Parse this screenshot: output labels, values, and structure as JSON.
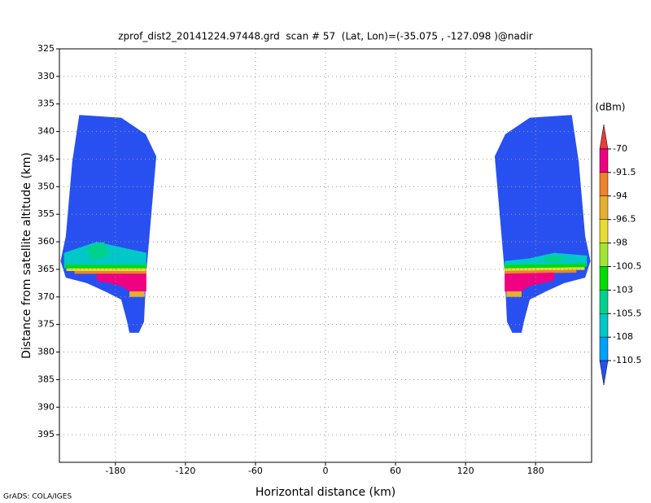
{
  "chart_data": {
    "type": "field",
    "title": "zprof_dist2_20141224.97448.grd  scan # 57  (Lat, Lon)=(-35.075 , -127.098 )@nadir",
    "x_label": "Horizontal distance (km)",
    "y_label": "Distance from satellite altitude (km)",
    "credit": "GrADS: COLA/IGES",
    "xlim": [
      -228,
      228
    ],
    "ylim": [
      325,
      400
    ],
    "y_inverted": true,
    "xticks": [
      -180,
      -120,
      -60,
      0,
      60,
      120,
      180
    ],
    "yticks": [
      325,
      330,
      335,
      340,
      345,
      350,
      355,
      360,
      365,
      370,
      375,
      380,
      385,
      390,
      395
    ],
    "grid": true,
    "colorbar": {
      "unit": "(dBm)",
      "levels": [
        -70,
        -91.5,
        -94,
        -96.5,
        -98,
        -100.5,
        -103,
        -105.5,
        -108,
        -110.5
      ],
      "colors": [
        "#e63c3c",
        "#f00082",
        "#f08228",
        "#e6af2d",
        "#e6dc32",
        "#a0e632",
        "#00dc00",
        "#00d28c",
        "#00c8c8",
        "#00a0ff",
        "#2850f0"
      ]
    },
    "regions": [
      {
        "value": -112,
        "points": [
          [
            -211,
            337
          ],
          [
            -175,
            337.5
          ],
          [
            -154,
            340.5
          ],
          [
            -145,
            344.5
          ],
          [
            -153.5,
            365.5
          ],
          [
            -155.5,
            374.5
          ],
          [
            -160,
            376.5
          ],
          [
            -168,
            376.5
          ],
          [
            -170,
            374.5
          ],
          [
            -175,
            370.5
          ],
          [
            -189,
            369
          ],
          [
            -204.5,
            367.5
          ],
          [
            -222.5,
            366.5
          ],
          [
            -224,
            365.5
          ],
          [
            -227,
            363.5
          ],
          [
            -222.5,
            359
          ],
          [
            -217,
            345.5
          ]
        ]
      },
      {
        "value": -107,
        "points": [
          [
            -224,
            362
          ],
          [
            -196,
            360
          ],
          [
            -175,
            361
          ],
          [
            -153.5,
            362
          ],
          [
            -153.5,
            364.5
          ],
          [
            -224,
            364.8
          ]
        ]
      },
      {
        "value": -104,
        "points": [
          [
            -205,
            361
          ],
          [
            -190,
            360
          ],
          [
            -185,
            362.5
          ],
          [
            -200,
            363.5
          ]
        ]
      },
      {
        "value": -102,
        "points": [
          [
            -223,
            364.2
          ],
          [
            -153.5,
            364.2
          ],
          [
            -153.5,
            364.8
          ],
          [
            -223,
            364.8
          ]
        ]
      },
      {
        "value": -97,
        "points": [
          [
            -222,
            364.8
          ],
          [
            -153.5,
            364.8
          ],
          [
            -153.5,
            365.3
          ],
          [
            -222,
            365.3
          ]
        ]
      },
      {
        "value": -93,
        "points": [
          [
            -215,
            365.3
          ],
          [
            -153.5,
            365.3
          ],
          [
            -153.5,
            365.8
          ],
          [
            -215,
            365.8
          ]
        ]
      },
      {
        "value": -85,
        "points": [
          [
            -196,
            365.8
          ],
          [
            -153.5,
            365.8
          ],
          [
            -153.5,
            369
          ],
          [
            -168,
            369
          ],
          [
            -175,
            368
          ],
          [
            -196,
            367
          ]
        ]
      },
      {
        "value": -95.5,
        "points": [
          [
            -168,
            369
          ],
          [
            -155,
            369
          ],
          [
            -155,
            370
          ],
          [
            -168,
            370
          ]
        ]
      },
      {
        "value": -112,
        "points": [
          [
            211,
            337
          ],
          [
            175,
            337.5
          ],
          [
            154,
            340.5
          ],
          [
            145,
            344.5
          ],
          [
            153.5,
            365.5
          ],
          [
            155.5,
            374.5
          ],
          [
            160,
            376.5
          ],
          [
            168,
            376.5
          ],
          [
            170,
            374.5
          ],
          [
            175,
            370.5
          ],
          [
            189,
            369
          ],
          [
            204.5,
            367.5
          ],
          [
            222.5,
            366.5
          ],
          [
            224,
            365.5
          ],
          [
            227,
            363.5
          ],
          [
            222.5,
            359
          ],
          [
            217,
            345.5
          ]
        ]
      },
      {
        "value": -107,
        "points": [
          [
            224,
            362.5
          ],
          [
            196,
            362
          ],
          [
            175,
            363
          ],
          [
            153.5,
            363.5
          ],
          [
            153.5,
            364.8
          ],
          [
            224,
            364.5
          ]
        ]
      },
      {
        "value": -104,
        "points": [
          [
            205,
            362.5
          ],
          [
            190,
            362.5
          ],
          [
            185,
            363.5
          ],
          [
            200,
            363.8
          ]
        ]
      },
      {
        "value": -102,
        "points": [
          [
            223,
            364
          ],
          [
            153.5,
            364.2
          ],
          [
            153.5,
            364.8
          ],
          [
            223,
            364.6
          ]
        ]
      },
      {
        "value": -97,
        "points": [
          [
            222,
            364.6
          ],
          [
            153.5,
            364.8
          ],
          [
            153.5,
            365.3
          ],
          [
            222,
            365.1
          ]
        ]
      },
      {
        "value": -93,
        "points": [
          [
            215,
            365.1
          ],
          [
            153.5,
            365.3
          ],
          [
            153.5,
            365.8
          ],
          [
            215,
            365.6
          ]
        ]
      },
      {
        "value": -85,
        "points": [
          [
            196,
            365.6
          ],
          [
            153.5,
            365.8
          ],
          [
            153.5,
            369
          ],
          [
            168,
            369
          ],
          [
            175,
            368
          ],
          [
            196,
            367
          ]
        ]
      },
      {
        "value": -95.5,
        "points": [
          [
            168,
            369
          ],
          [
            155,
            369
          ],
          [
            155,
            370
          ],
          [
            168,
            370
          ]
        ]
      }
    ]
  }
}
